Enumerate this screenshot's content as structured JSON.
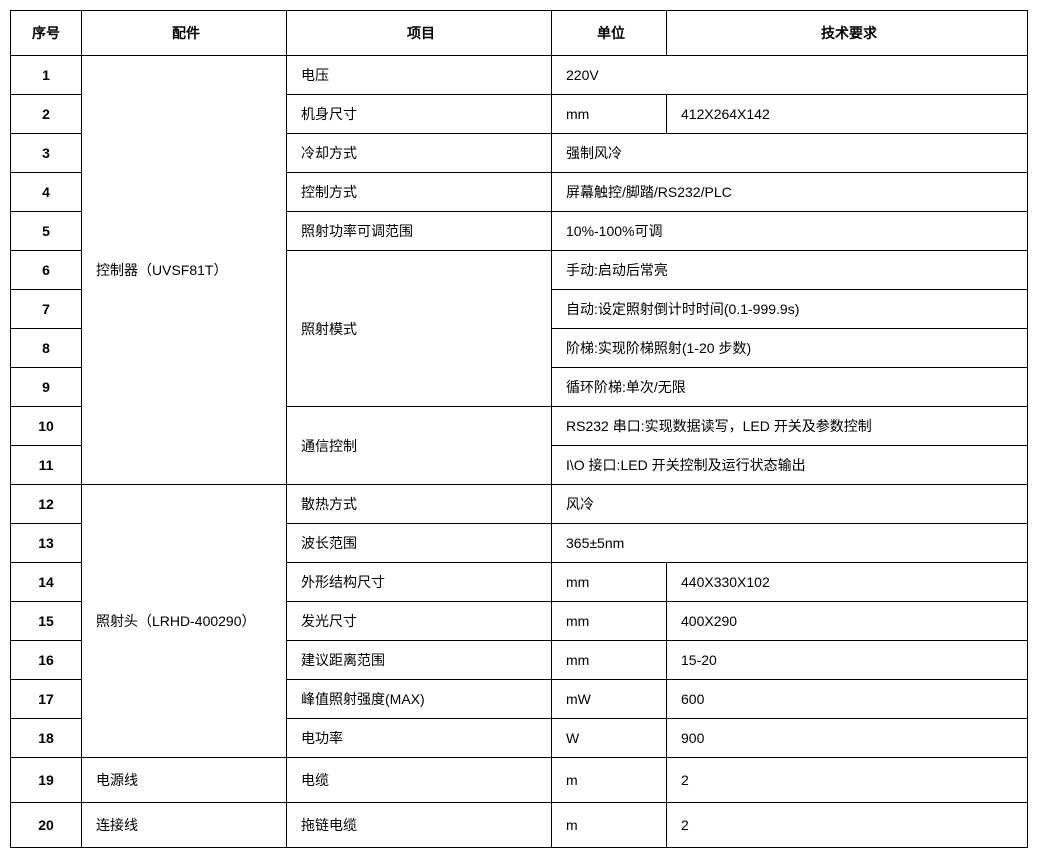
{
  "headers": {
    "seq": "序号",
    "part": "配件",
    "item": "项目",
    "unit": "单位",
    "req": "技术要求"
  },
  "parts": {
    "controller": "控制器（UVSF81T）",
    "head": "照射头（LRHD-400290）",
    "power": "电源线",
    "cable": "连接线"
  },
  "rows": {
    "r1": {
      "seq": "1",
      "item": "电压",
      "unit": "",
      "req": "220V"
    },
    "r2": {
      "seq": "2",
      "item": "机身尺寸",
      "unit": "mm",
      "req": "412X264X142"
    },
    "r3": {
      "seq": "3",
      "item": "冷却方式",
      "unit": "",
      "req": "强制风冷"
    },
    "r4": {
      "seq": "4",
      "item": "控制方式",
      "unit": "",
      "req": "屏幕触控/脚踏/RS232/PLC"
    },
    "r5": {
      "seq": "5",
      "item": "照射功率可调范围",
      "unit": "",
      "req": "10%-100%可调"
    },
    "r6": {
      "seq": "6",
      "item": "照射模式",
      "unit": "",
      "req": "手动:启动后常亮"
    },
    "r7": {
      "seq": "7",
      "item": "",
      "unit": "",
      "req": "自动:设定照射倒计时时间(0.1-999.9s)"
    },
    "r8": {
      "seq": "8",
      "item": "",
      "unit": "",
      "req": "阶梯:实现阶梯照射(1-20 步数)"
    },
    "r9": {
      "seq": "9",
      "item": "",
      "unit": "",
      "req": "循环阶梯:单次/无限"
    },
    "r10": {
      "seq": "10",
      "item": "通信控制",
      "unit": "",
      "req": "RS232 串口:实现数据读写，LED 开关及参数控制"
    },
    "r11": {
      "seq": "11",
      "item": "",
      "unit": "",
      "req": "I\\O 接口:LED 开关控制及运行状态输出"
    },
    "r12": {
      "seq": "12",
      "item": "散热方式",
      "unit": "",
      "req": "风冷"
    },
    "r13": {
      "seq": "13",
      "item": "波长范围",
      "unit": "",
      "req": "365±5nm"
    },
    "r14": {
      "seq": "14",
      "item": "外形结构尺寸",
      "unit": "mm",
      "req": "440X330X102"
    },
    "r15": {
      "seq": "15",
      "item": "发光尺寸",
      "unit": "mm",
      "req": "400X290"
    },
    "r16": {
      "seq": "16",
      "item": "建议距离范围",
      "unit": "mm",
      "req": "15-20"
    },
    "r17": {
      "seq": "17",
      "item": "峰值照射强度(MAX)",
      "unit": "mW",
      "req": "600"
    },
    "r18": {
      "seq": "18",
      "item": "电功率",
      "unit": "W",
      "req": "900"
    },
    "r19": {
      "seq": "19",
      "item": "电缆",
      "unit": "m",
      "req": "2"
    },
    "r20": {
      "seq": "20",
      "item": "拖链电缆",
      "unit": "m",
      "req": "2"
    }
  }
}
